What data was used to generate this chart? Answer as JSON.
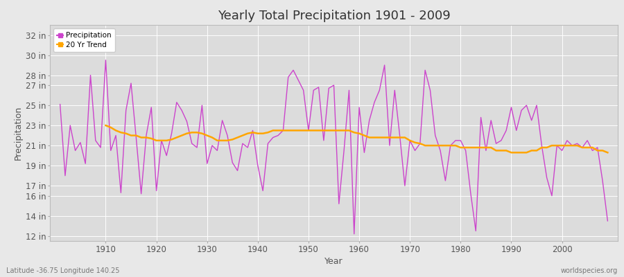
{
  "title": "Yearly Total Precipitation 1901 - 2009",
  "xlabel": "Year",
  "ylabel": "Precipitation",
  "subtitle": "Latitude -36.75 Longitude 140.25",
  "watermark": "worldspecies.org",
  "years": [
    1901,
    1902,
    1903,
    1904,
    1905,
    1906,
    1907,
    1908,
    1909,
    1910,
    1911,
    1912,
    1913,
    1914,
    1915,
    1916,
    1917,
    1918,
    1919,
    1920,
    1921,
    1922,
    1923,
    1924,
    1925,
    1926,
    1927,
    1928,
    1929,
    1930,
    1931,
    1932,
    1933,
    1934,
    1935,
    1936,
    1937,
    1938,
    1939,
    1940,
    1941,
    1942,
    1943,
    1944,
    1945,
    1946,
    1947,
    1948,
    1949,
    1950,
    1951,
    1952,
    1953,
    1954,
    1955,
    1956,
    1957,
    1958,
    1959,
    1960,
    1961,
    1962,
    1963,
    1964,
    1965,
    1966,
    1967,
    1968,
    1969,
    1970,
    1971,
    1972,
    1973,
    1974,
    1975,
    1976,
    1977,
    1978,
    1979,
    1980,
    1981,
    1982,
    1983,
    1984,
    1985,
    1986,
    1987,
    1988,
    1989,
    1990,
    1991,
    1992,
    1993,
    1994,
    1995,
    1996,
    1997,
    1998,
    1999,
    2000,
    2001,
    2002,
    2003,
    2004,
    2005,
    2006,
    2007,
    2008,
    2009
  ],
  "precip_in": [
    25.1,
    18.0,
    23.0,
    20.5,
    21.3,
    19.2,
    28.0,
    21.5,
    20.8,
    29.5,
    20.5,
    22.0,
    16.3,
    24.5,
    27.2,
    21.8,
    16.2,
    22.0,
    24.8,
    16.5,
    21.5,
    20.0,
    22.2,
    25.3,
    24.5,
    23.4,
    21.2,
    20.8,
    25.0,
    19.2,
    21.0,
    20.5,
    23.5,
    22.0,
    19.3,
    18.5,
    21.2,
    20.8,
    22.5,
    19.0,
    16.5,
    21.2,
    21.8,
    22.0,
    22.5,
    27.8,
    28.5,
    27.5,
    26.5,
    22.5,
    26.5,
    26.8,
    21.5,
    26.7,
    27.0,
    15.2,
    20.5,
    26.5,
    12.2,
    24.8,
    20.3,
    23.5,
    25.3,
    26.5,
    29.0,
    21.0,
    26.5,
    22.0,
    17.0,
    21.5,
    20.5,
    21.2,
    28.5,
    26.5,
    22.0,
    20.5,
    17.5,
    21.0,
    21.5,
    21.5,
    20.5,
    16.2,
    12.5,
    23.8,
    20.5,
    23.5,
    21.2,
    21.5,
    22.5,
    24.8,
    22.5,
    24.5,
    25.0,
    23.5,
    25.0,
    21.0,
    17.8,
    16.0,
    21.0,
    20.5,
    21.5,
    21.0,
    21.2,
    20.8,
    21.5,
    20.5,
    20.8,
    17.5,
    13.5
  ],
  "trend_years": [
    1910,
    1911,
    1912,
    1913,
    1914,
    1915,
    1916,
    1917,
    1918,
    1919,
    1920,
    1921,
    1922,
    1923,
    1924,
    1925,
    1926,
    1927,
    1928,
    1929,
    1930,
    1931,
    1932,
    1933,
    1934,
    1935,
    1936,
    1937,
    1938,
    1939,
    1940,
    1941,
    1942,
    1943,
    1944,
    1945,
    1946,
    1947,
    1948,
    1949,
    1950,
    1951,
    1952,
    1953,
    1954,
    1955,
    1956,
    1957,
    1958,
    1959,
    1960,
    1961,
    1962,
    1963,
    1964,
    1965,
    1966,
    1967,
    1968,
    1969,
    1970,
    1971,
    1972,
    1973,
    1974,
    1975,
    1976,
    1977,
    1978,
    1979,
    1980,
    1981,
    1982,
    1983,
    1984,
    1985,
    1986,
    1987,
    1988,
    1989,
    1990,
    1991,
    1992,
    1993,
    1994,
    1995,
    1996,
    1997,
    1998,
    1999,
    2000,
    2001,
    2002,
    2003,
    2004,
    2005,
    2006,
    2007,
    2008,
    2009
  ],
  "trend_in": [
    23.0,
    22.8,
    22.5,
    22.3,
    22.2,
    22.0,
    22.0,
    21.8,
    21.8,
    21.7,
    21.5,
    21.5,
    21.5,
    21.6,
    21.8,
    22.0,
    22.2,
    22.3,
    22.3,
    22.2,
    22.0,
    21.8,
    21.5,
    21.5,
    21.5,
    21.6,
    21.8,
    22.0,
    22.2,
    22.3,
    22.2,
    22.2,
    22.3,
    22.5,
    22.5,
    22.5,
    22.5,
    22.5,
    22.5,
    22.5,
    22.5,
    22.5,
    22.5,
    22.5,
    22.5,
    22.5,
    22.5,
    22.5,
    22.5,
    22.3,
    22.2,
    22.0,
    21.8,
    21.8,
    21.8,
    21.8,
    21.8,
    21.8,
    21.8,
    21.8,
    21.5,
    21.3,
    21.2,
    21.0,
    21.0,
    21.0,
    21.0,
    21.0,
    21.0,
    21.0,
    20.8,
    20.8,
    20.8,
    20.8,
    20.8,
    20.8,
    20.8,
    20.5,
    20.5,
    20.5,
    20.3,
    20.3,
    20.3,
    20.3,
    20.5,
    20.5,
    20.8,
    20.8,
    21.0,
    21.0,
    21.0,
    21.0,
    21.0,
    21.0,
    20.8,
    20.8,
    20.8,
    20.5,
    20.5,
    20.3
  ],
  "precip_color": "#CC44CC",
  "trend_color": "#FFA500",
  "bg_color": "#E8E8E8",
  "plot_bg_color": "#DCDCDC",
  "grid_color": "#FFFFFF",
  "ytick_labels": [
    "12 in",
    "14 in",
    "16 in",
    "17 in",
    "19 in",
    "21 in",
    "23 in",
    "25 in",
    "27 in",
    "28 in",
    "30 in",
    "32 in"
  ],
  "ytick_values": [
    12,
    14,
    16,
    17,
    19,
    21,
    23,
    25,
    27,
    28,
    30,
    32
  ],
  "ylim": [
    11.5,
    33
  ],
  "xlim": [
    1899,
    2011
  ],
  "xticks": [
    1910,
    1920,
    1930,
    1940,
    1950,
    1960,
    1970,
    1980,
    1990,
    2000
  ]
}
